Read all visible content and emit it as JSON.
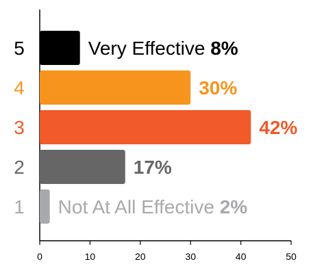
{
  "chart_data": {
    "type": "bar",
    "orientation": "horizontal",
    "categories": [
      "5",
      "4",
      "3",
      "2",
      "1"
    ],
    "values": [
      8,
      30,
      42,
      17,
      2
    ],
    "value_labels": [
      "8%",
      "30%",
      "42%",
      "17%",
      "2%"
    ],
    "bar_annotations": [
      "Very Effective",
      "",
      "",
      "",
      "Not At All Effective"
    ],
    "colors": [
      "#000000",
      "#f7941d",
      "#f15a29",
      "#666666",
      "#a7a9ac"
    ],
    "xlim": [
      0,
      50
    ],
    "xticks": [
      "0",
      "10",
      "20",
      "30",
      "40",
      "50"
    ],
    "grid": false,
    "title": "",
    "xlabel": "",
    "ylabel": ""
  }
}
